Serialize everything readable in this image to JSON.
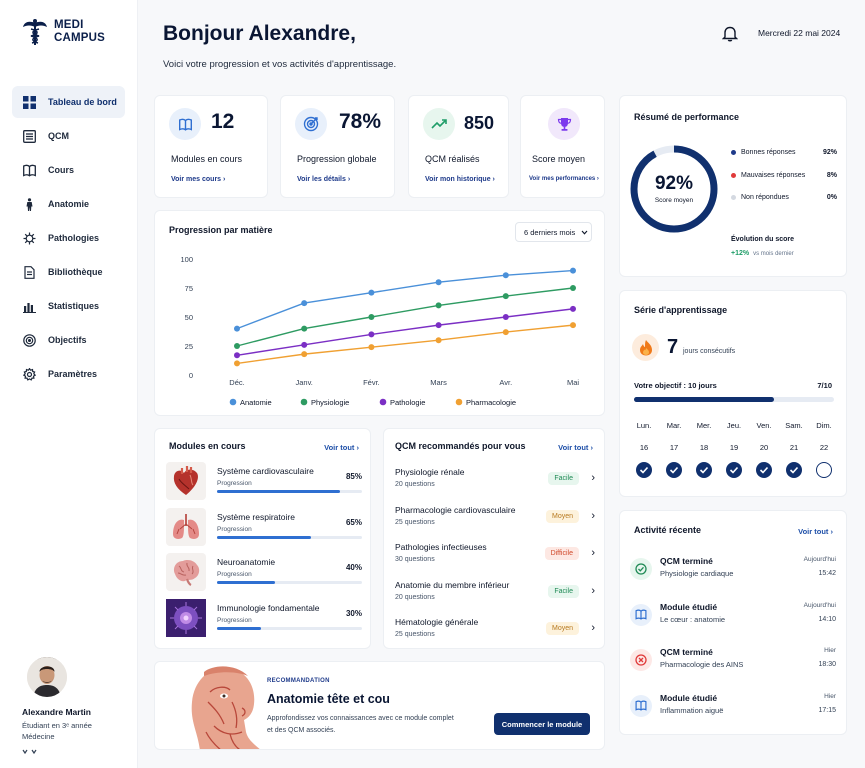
{
  "brand": {
    "line1": "MEDI",
    "line2": "CAMPUS"
  },
  "nav": [
    {
      "label": "Tableau de bord",
      "icon": "dashboard-icon"
    },
    {
      "label": "QCM",
      "icon": "list-icon"
    },
    {
      "label": "Cours",
      "icon": "book-icon"
    },
    {
      "label": "Anatomie",
      "icon": "body-icon"
    },
    {
      "label": "Pathologies",
      "icon": "virus-icon"
    },
    {
      "label": "Bibliothèque",
      "icon": "file-icon"
    },
    {
      "label": "Statistiques",
      "icon": "bar-chart-icon"
    },
    {
      "label": "Objectifs",
      "icon": "target-icon"
    },
    {
      "label": "Paramètres",
      "icon": "gear-icon"
    }
  ],
  "profile": {
    "name": "Alexandre Martin",
    "line1": "Étudiant en 3ᵉ année",
    "line2": "Médecine"
  },
  "header": {
    "title": "Bonjour Alexandre,",
    "subtitle": "Voici votre progression et vos activités d'apprentissage.",
    "date": "Mercredi 22 mai 2024"
  },
  "stats": [
    {
      "value": "12",
      "label": "Modules en cours",
      "link": "Voir mes cours ›",
      "icon": "book-icon",
      "color": "#2f6fd1"
    },
    {
      "value": "78%",
      "label": "Progression globale",
      "link": "Voir les détails ›",
      "icon": "target-icon",
      "color": "#2f6fd1"
    },
    {
      "value": "850",
      "label": "QCM réalisés",
      "link": "Voir mon historique ›",
      "icon": "trend-icon",
      "color": "#1f9d68"
    },
    {
      "value": "",
      "label": "Score moyen",
      "link": "Voir mes performances ›",
      "icon": "trophy-icon",
      "color": "#7c3aed"
    }
  ],
  "chart": {
    "title": "Progression par matière",
    "period": "6 derniers mois",
    "chart_data": {
      "type": "line",
      "x": [
        "Déc.",
        "Janv.",
        "Févr.",
        "Mars",
        "Avr.",
        "Mai"
      ],
      "yticks": [
        0,
        25,
        50,
        75,
        100
      ],
      "ylim": [
        0,
        100
      ],
      "legend": "bottom",
      "series": [
        {
          "name": "Anatomie",
          "color": "#4a90d9",
          "values": [
            40,
            62,
            71,
            80,
            86,
            90
          ]
        },
        {
          "name": "Physiologie",
          "color": "#2e9b62",
          "values": [
            25,
            40,
            50,
            60,
            68,
            75
          ]
        },
        {
          "name": "Pathologie",
          "color": "#7b2fc4",
          "values": [
            17,
            26,
            35,
            43,
            50,
            57
          ]
        },
        {
          "name": "Pharmacologie",
          "color": "#f0a032",
          "values": [
            10,
            18,
            24,
            30,
            37,
            43
          ]
        }
      ]
    }
  },
  "performance": {
    "title": "Résumé de performance",
    "score": "92%",
    "score_label": "Score moyen",
    "score_fraction": 0.92,
    "items": [
      {
        "label": "Bonnes réponses",
        "value": "92%",
        "color": "#1e3a8a"
      },
      {
        "label": "Mauvaises réponses",
        "value": "8%",
        "color": "#e03a3a"
      },
      {
        "label": "Non répondues",
        "value": "0%",
        "color": "#d4d9e1"
      }
    ],
    "evolution_title": "Évolution du score",
    "evolution_value": "+12%",
    "evolution_note": "vs mois dernier"
  },
  "streak": {
    "title": "Série d'apprentissage",
    "days_value": "7",
    "days_label": "jours consécutifs",
    "goal_label": "Votre objectif : 10 jours",
    "goal_value": "7/10",
    "progress": 0.7,
    "days": [
      {
        "name": "Lun.",
        "num": "16",
        "done": true
      },
      {
        "name": "Mar.",
        "num": "17",
        "done": true
      },
      {
        "name": "Mer.",
        "num": "18",
        "done": true
      },
      {
        "name": "Jeu.",
        "num": "19",
        "done": true
      },
      {
        "name": "Ven.",
        "num": "20",
        "done": true
      },
      {
        "name": "Sam.",
        "num": "21",
        "done": true
      },
      {
        "name": "Dim.",
        "num": "22",
        "done": false
      }
    ]
  },
  "modules": {
    "title": "Modules en cours",
    "link": "Voir tout ›",
    "progress_label": "Progression",
    "items": [
      {
        "name": "Système cardiovasculaire",
        "pct": "85%",
        "fraction": 0.85,
        "icon": "heart-icon"
      },
      {
        "name": "Système respiratoire",
        "pct": "65%",
        "fraction": 0.65,
        "icon": "lungs-icon"
      },
      {
        "name": "Neuroanatomie",
        "pct": "40%",
        "fraction": 0.4,
        "icon": "brain-icon"
      },
      {
        "name": "Immunologie fondamentale",
        "pct": "30%",
        "fraction": 0.3,
        "icon": "cell-icon"
      }
    ]
  },
  "qcm": {
    "title": "QCM recommandés pour vous",
    "link": "Voir tout ›",
    "items": [
      {
        "name": "Physiologie rénale",
        "count": "20 questions",
        "level": "Facile",
        "bg": "#e7f6ee",
        "fg": "#1f8a55"
      },
      {
        "name": "Pharmacologie cardiovasculaire",
        "count": "25 questions",
        "level": "Moyen",
        "bg": "#fdf2dc",
        "fg": "#b7791f"
      },
      {
        "name": "Pathologies infectieuses",
        "count": "30 questions",
        "level": "Difficile",
        "bg": "#fde8e3",
        "fg": "#d0482a"
      },
      {
        "name": "Anatomie du membre inférieur",
        "count": "20 questions",
        "level": "Facile",
        "bg": "#e7f6ee",
        "fg": "#1f8a55"
      },
      {
        "name": "Hématologie générale",
        "count": "25 questions",
        "level": "Moyen",
        "bg": "#fdf2dc",
        "fg": "#b7791f"
      }
    ]
  },
  "recommendation": {
    "tag": "RECOMMANDATION",
    "title": "Anatomie tête et cou",
    "desc1": "Approfondissez vos connaissances avec ce module complet",
    "desc2": "et des QCM associés.",
    "button": "Commencer le module"
  },
  "activity": {
    "title": "Activité récente",
    "link": "Voir tout ›",
    "items": [
      {
        "title": "QCM terminé",
        "sub": "Physiologie cardiaque",
        "when": "Aujourd'hui",
        "time": "15:42",
        "icon": "check-circle-icon",
        "bg": "#e7f6ee",
        "fg": "#1f8a55"
      },
      {
        "title": "Module étudié",
        "sub": "Le cœur : anatomie",
        "when": "Aujourd'hui",
        "time": "14:10",
        "icon": "book-icon",
        "bg": "#e8f0fb",
        "fg": "#2f6fd1"
      },
      {
        "title": "QCM terminé",
        "sub": "Pharmacologie des AINS",
        "when": "Hier",
        "time": "18:30",
        "icon": "x-circle-icon",
        "bg": "#fde8e6",
        "fg": "#e03a3a"
      },
      {
        "title": "Module étudié",
        "sub": "Inflammation aiguë",
        "when": "Hier",
        "time": "17:15",
        "icon": "book-icon",
        "bg": "#e8f0fb",
        "fg": "#2f6fd1"
      }
    ]
  }
}
